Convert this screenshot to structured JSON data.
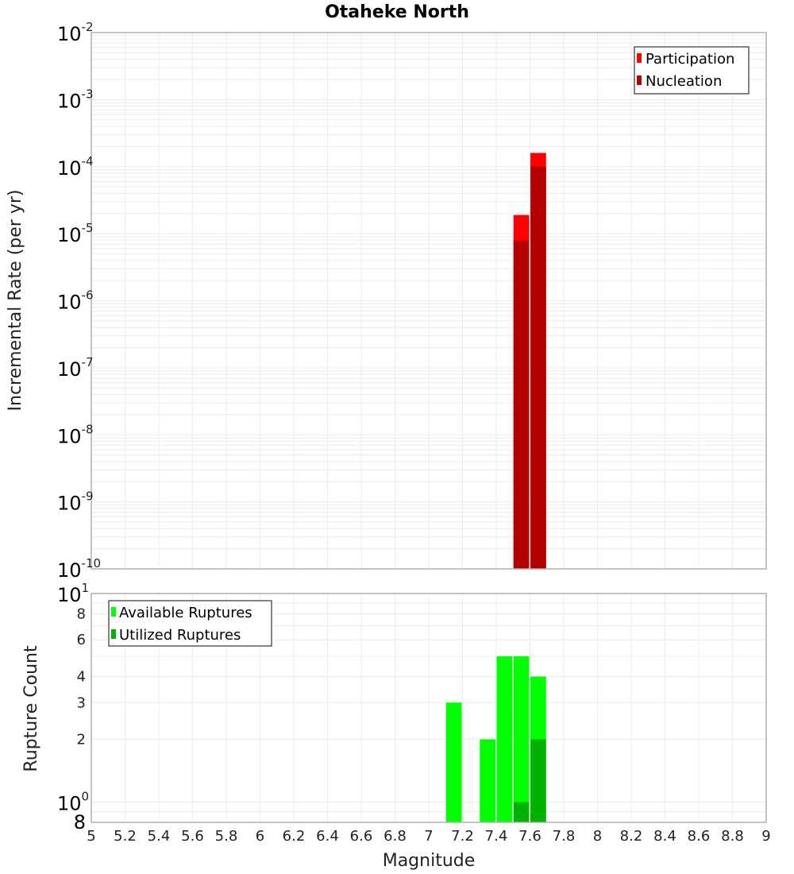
{
  "chart_data": [
    {
      "type": "bar",
      "title": "Otaheke North",
      "xlabel": "Magnitude",
      "ylabel": "Incremental Rate (per yr)",
      "yscale": "log",
      "ylim": [
        1e-10,
        0.01
      ],
      "xlim": [
        5,
        9
      ],
      "grid": true,
      "legend_position": "top-right",
      "y_tick_labels": [
        {
          "base": "10",
          "exp": "-2"
        },
        {
          "base": "10",
          "exp": "-3"
        },
        {
          "base": "10",
          "exp": "-4"
        },
        {
          "base": "10",
          "exp": "-5"
        },
        {
          "base": "10",
          "exp": "-6"
        },
        {
          "base": "10",
          "exp": "-7"
        },
        {
          "base": "10",
          "exp": "-8"
        },
        {
          "base": "10",
          "exp": "-9"
        },
        {
          "base": "10",
          "exp": "-10"
        }
      ],
      "bin_width": 0.1,
      "series": [
        {
          "name": "Participation",
          "color": "#ff0000",
          "x": [
            7.55,
            7.65
          ],
          "values": [
            1.9e-05,
            0.00016
          ]
        },
        {
          "name": "Nucleation",
          "color": "#b30000",
          "x": [
            7.55,
            7.65
          ],
          "values": [
            7.9e-06,
            0.0001
          ]
        }
      ]
    },
    {
      "type": "bar",
      "title": "",
      "xlabel": "Magnitude",
      "ylabel": "Rupture Count",
      "yscale": "log",
      "ylim": [
        0.8,
        10
      ],
      "xlim": [
        5,
        9
      ],
      "grid": true,
      "legend_position": "top-left",
      "y_tick_labels": [
        {
          "value": 10,
          "base": "10",
          "exp": "1"
        },
        {
          "value": 8,
          "label": "8"
        },
        {
          "value": 6,
          "label": "6"
        },
        {
          "value": 4,
          "label": "4"
        },
        {
          "value": 3,
          "label": "3"
        },
        {
          "value": 2,
          "label": "2"
        },
        {
          "value": 1,
          "base": "10",
          "exp": "0"
        },
        {
          "value": 0.8,
          "label": "8"
        }
      ],
      "bin_width": 0.1,
      "series": [
        {
          "name": "Available Ruptures",
          "color": "#00ff00",
          "x": [
            7.15,
            7.35,
            7.45,
            7.55,
            7.65
          ],
          "values": [
            3,
            2,
            5,
            5,
            4
          ]
        },
        {
          "name": "Utilized Ruptures",
          "color": "#00b300",
          "x": [
            7.55,
            7.65
          ],
          "values": [
            1,
            2
          ]
        }
      ]
    }
  ],
  "x_tick_labels": [
    "5",
    "5.2",
    "5.4",
    "5.6",
    "5.8",
    "6",
    "6.2",
    "6.4",
    "6.6",
    "6.8",
    "7",
    "7.2",
    "7.4",
    "7.6",
    "7.8",
    "8",
    "8.2",
    "8.4",
    "8.6",
    "8.8",
    "9"
  ],
  "labels": {
    "title": "Otaheke North",
    "top_ylabel": "Incremental Rate (per yr)",
    "bottom_ylabel": "Rupture Count",
    "xlabel": "Magnitude",
    "legend_top": [
      "Participation",
      "Nucleation"
    ],
    "legend_bottom": [
      "Available Ruptures",
      "Utilized Ruptures"
    ]
  }
}
